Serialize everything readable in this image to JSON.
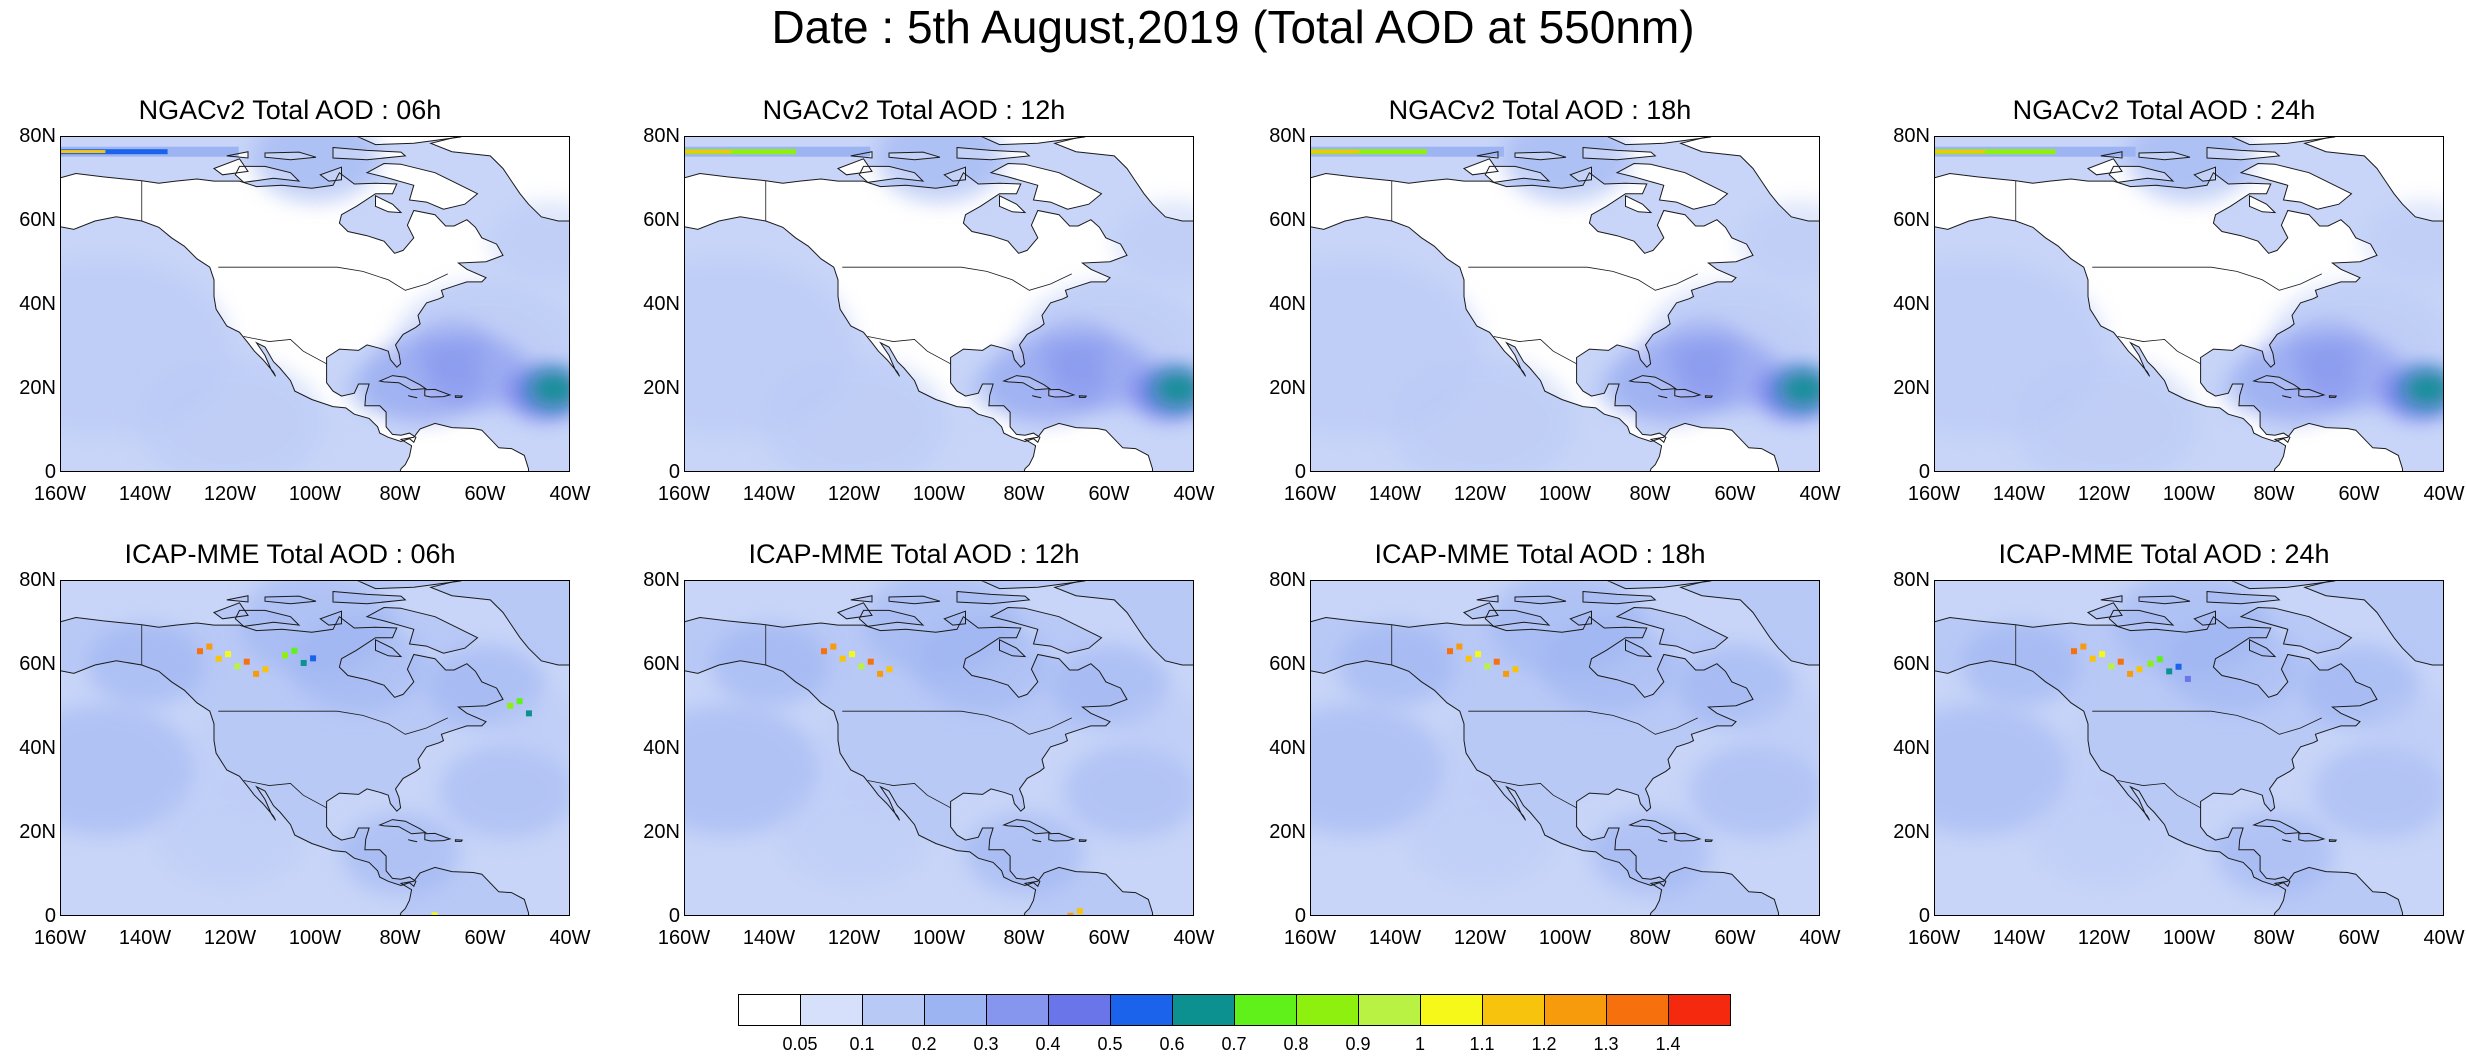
{
  "figure": {
    "title": "Date : 5th August,2019 (Total AOD at 550nm)"
  },
  "panels": [
    {
      "id": "ngac-06",
      "title": "NGACv2 Total AOD : 06h",
      "model": "NGACv2",
      "lead": "06h"
    },
    {
      "id": "ngac-12",
      "title": "NGACv2 Total AOD : 12h",
      "model": "NGACv2",
      "lead": "12h"
    },
    {
      "id": "ngac-18",
      "title": "NGACv2 Total AOD : 18h",
      "model": "NGACv2",
      "lead": "18h"
    },
    {
      "id": "ngac-24",
      "title": "NGACv2 Total AOD : 24h",
      "model": "NGACv2",
      "lead": "24h"
    },
    {
      "id": "icap-06",
      "title": "ICAP-MME Total AOD : 06h",
      "model": "ICAP-MME",
      "lead": "06h"
    },
    {
      "id": "icap-12",
      "title": "ICAP-MME Total AOD : 12h",
      "model": "ICAP-MME",
      "lead": "12h"
    },
    {
      "id": "icap-18",
      "title": "ICAP-MME Total AOD : 18h",
      "model": "ICAP-MME",
      "lead": "18h"
    },
    {
      "id": "icap-24",
      "title": "ICAP-MME Total AOD : 24h",
      "model": "ICAP-MME",
      "lead": "24h"
    }
  ],
  "axes": {
    "lat_ticks": [
      "0",
      "20N",
      "40N",
      "60N",
      "80N"
    ],
    "lon_ticks": [
      "160W",
      "140W",
      "120W",
      "100W",
      "80W",
      "60W",
      "40W"
    ],
    "lat_range": [
      0,
      80
    ],
    "lon_range": [
      -160,
      -40
    ]
  },
  "colorbar": {
    "labels": [
      "0.05",
      "0.1",
      "0.2",
      "0.3",
      "0.4",
      "0.5",
      "0.6",
      "0.7",
      "0.8",
      "0.9",
      "1",
      "1.1",
      "1.2",
      "1.3",
      "1.4"
    ],
    "colors": [
      "#ffffff",
      "#d6e0fb",
      "#b9c9f6",
      "#9db4f2",
      "#8696ee",
      "#6b75ea",
      "#1a63ea",
      "#0c9190",
      "#60f01a",
      "#8df00e",
      "#b9f242",
      "#f6f81a",
      "#f7c30d",
      "#f79a0c",
      "#f6710d",
      "#f4290e"
    ]
  },
  "map_colors": {
    "background": "#c8d5f8",
    "land": "#ffffff",
    "land_icap": "#b9c9f6",
    "coast": "#1a1a1a"
  }
}
